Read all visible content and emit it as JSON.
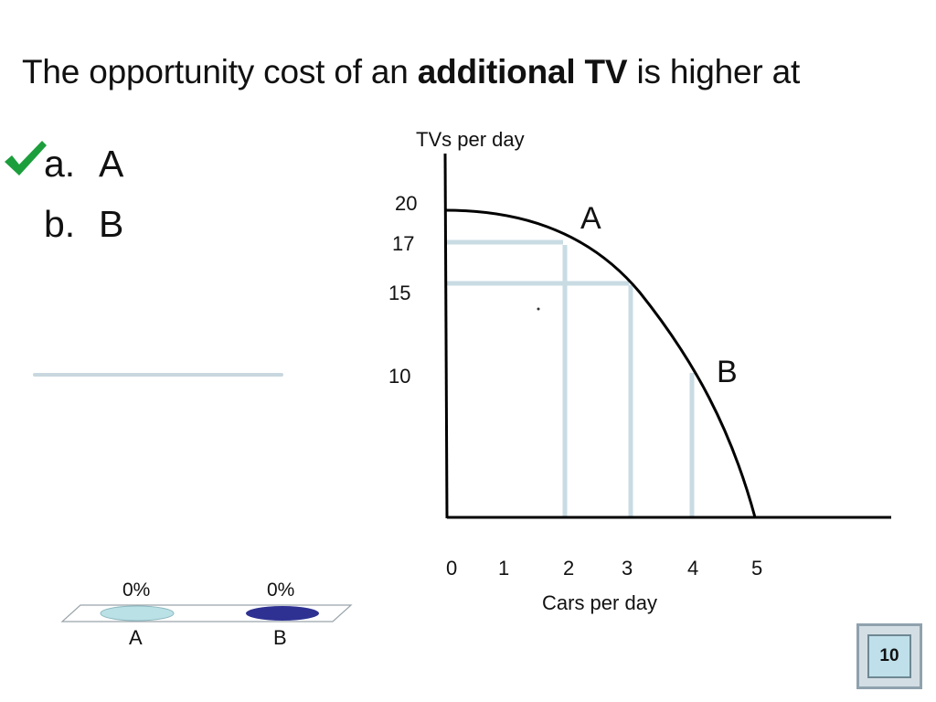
{
  "question": {
    "prefix": "The opportunity cost of an ",
    "emphasis": "additional TV",
    "suffix": " is higher at"
  },
  "options": [
    {
      "letter": "a.",
      "text": "A",
      "correct": true
    },
    {
      "letter": "b.",
      "text": "B",
      "correct": false
    }
  ],
  "diagram": {
    "y_axis_label": "TVs per day",
    "x_axis_label": "Cars per day",
    "y_ticks": [
      "20",
      "17",
      "15",
      "10"
    ],
    "x_ticks": [
      "0",
      "1",
      "2",
      "3",
      "4",
      "5"
    ],
    "curve_points": [
      {
        "cars": 0,
        "tvs": 20
      },
      {
        "cars": 2,
        "tvs": 17
      },
      {
        "cars": 3,
        "tvs": 15
      },
      {
        "cars": 4,
        "tvs": 10
      },
      {
        "cars": 5,
        "tvs": 0
      }
    ],
    "point_labels": {
      "a": "A",
      "b": "B"
    },
    "curve_color": "#000000",
    "guide_color": "#c9dbe3"
  },
  "results": {
    "bars": [
      {
        "label": "A",
        "percent": "0%",
        "color": "#b9e1e6"
      },
      {
        "label": "B",
        "percent": "0%",
        "color": "#2e3192"
      }
    ]
  },
  "timer": {
    "value": "10"
  }
}
